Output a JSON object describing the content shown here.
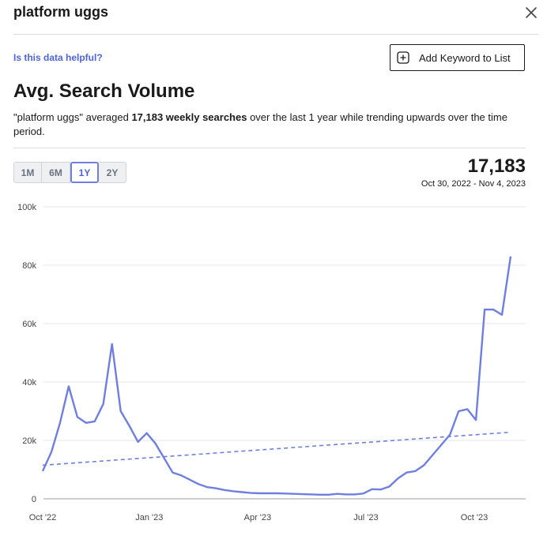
{
  "header": {
    "title": "platform uggs",
    "close_icon": "close-icon"
  },
  "helpful_link": "Is this data helpful?",
  "add_button": {
    "label": "Add Keyword to List",
    "icon": "plus-square-icon"
  },
  "section": {
    "title": "Avg. Search Volume",
    "summary_keyword": "\"platform uggs\"",
    "summary_part1": " averaged ",
    "summary_bold": "17,183 weekly searches",
    "summary_part2": " over the last 1 year while trending upwards over the time period."
  },
  "range_tabs": [
    {
      "label": "1M",
      "active": false
    },
    {
      "label": "6M",
      "active": false
    },
    {
      "label": "1Y",
      "active": true
    },
    {
      "label": "2Y",
      "active": false
    }
  ],
  "stat": {
    "value": "17,183",
    "date_range": "Oct 30, 2022 - Nov 4, 2023"
  },
  "colors": {
    "line": "#6f7fe0",
    "accent": "#4f63d9",
    "grid": "#e5e7eb"
  },
  "chart_data": {
    "type": "line",
    "y_ticks": [
      "0",
      "20k",
      "40k",
      "60k",
      "80k",
      "100k"
    ],
    "ylim": [
      0,
      100000
    ],
    "x_tick_labels": [
      {
        "label": "Oct '22",
        "index": 0
      },
      {
        "label": "Jan '23",
        "index": 12.3
      },
      {
        "label": "Apr '23",
        "index": 24.8
      },
      {
        "label": "Jul '23",
        "index": 37.3
      },
      {
        "label": "Oct '23",
        "index": 49.8
      }
    ],
    "grid": true,
    "series": [
      {
        "style": "solid",
        "values": [
          9500,
          16000,
          26000,
          38500,
          28000,
          26000,
          26500,
          32500,
          53000,
          30000,
          25000,
          19500,
          22500,
          19000,
          14000,
          9000,
          8000,
          6500,
          5000,
          4000,
          3600,
          3000,
          2600,
          2300,
          2000,
          1900,
          1900,
          1900,
          1800,
          1700,
          1600,
          1500,
          1400,
          1400,
          1700,
          1500,
          1500,
          1800,
          3300,
          3200,
          4200,
          7000,
          9000,
          9500,
          11500,
          15000,
          18500,
          22000,
          30000,
          30700,
          27000,
          64800,
          64800,
          63000,
          83000
        ]
      },
      {
        "style": "dashed",
        "values": [
          11500,
          22800
        ]
      }
    ]
  }
}
